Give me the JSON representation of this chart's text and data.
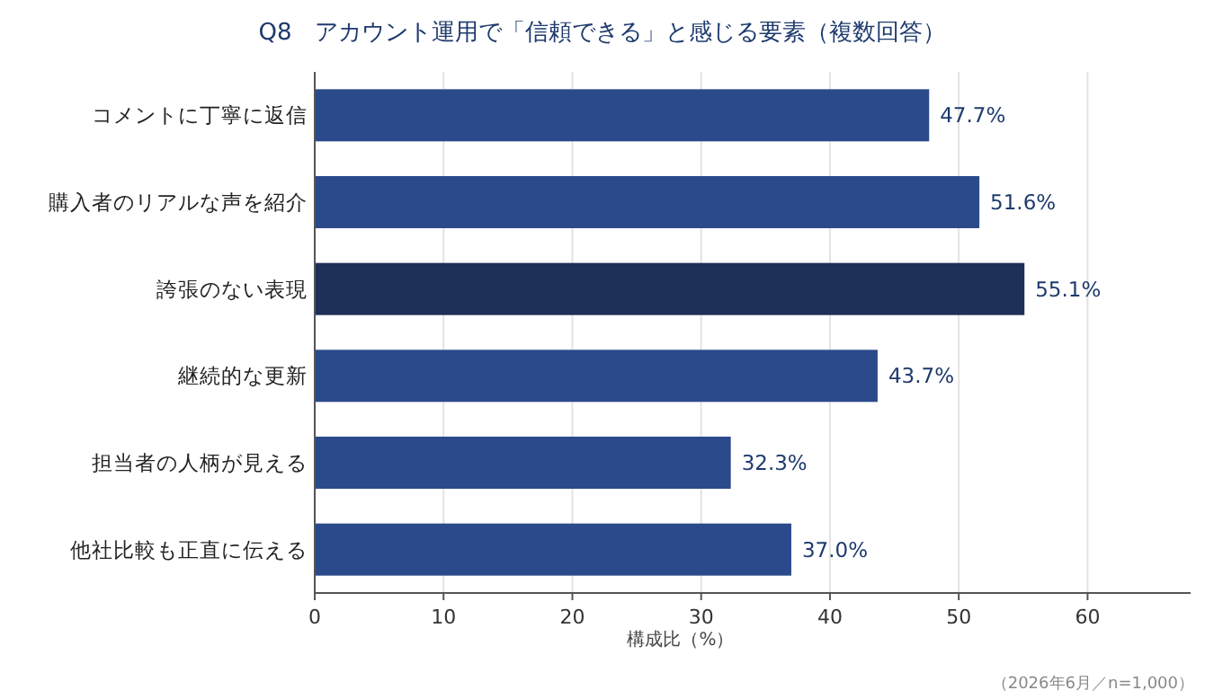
{
  "chart_data": {
    "type": "bar",
    "orientation": "horizontal",
    "title": "Q8　アカウント運用で「信頼できる」と感じる要素（複数回答）",
    "categories": [
      "コメントに丁寧に返信",
      "購入者のリアルな声を紹介",
      "誇張のない表現",
      "継続的な更新",
      "担当者の人柄が見える",
      "他社比較も正直に伝える"
    ],
    "values": [
      47.7,
      51.6,
      55.1,
      43.7,
      32.3,
      37.0
    ],
    "value_labels": [
      "47.7%",
      "51.6%",
      "55.1%",
      "43.7%",
      "32.3%",
      "37.0%"
    ],
    "colors": [
      "#2b4a8b",
      "#2b4a8b",
      "#1e2f58",
      "#2b4a8b",
      "#2b4a8b",
      "#2b4a8b"
    ],
    "xlim": [
      0,
      68
    ],
    "xticks": [
      0,
      10,
      20,
      30,
      40,
      50,
      60
    ],
    "xlabel": "構成比（%）",
    "grid": "x",
    "annotations": [
      "（2026年6月／n=1,000）"
    ]
  }
}
